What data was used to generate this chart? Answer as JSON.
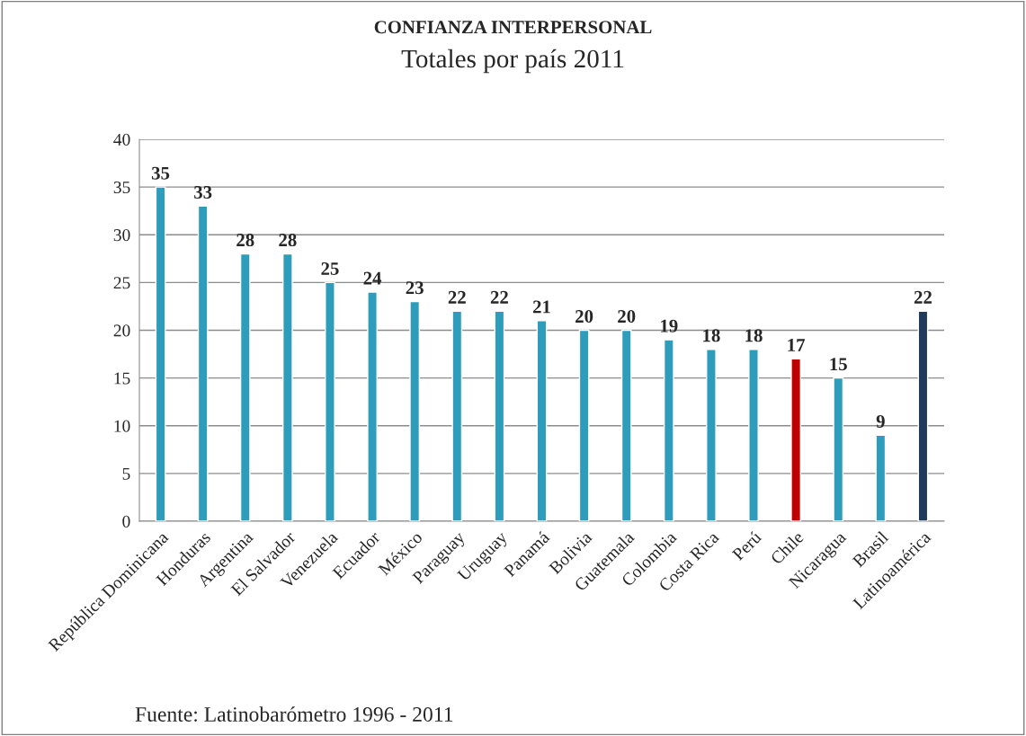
{
  "chart_data": {
    "type": "bar",
    "title": "CONFIANZA INTERPERSONAL",
    "subtitle": "Totales por país 2011",
    "categories": [
      "República Dominicana",
      "Honduras",
      "Argentina",
      "El Salvador",
      "Venezuela",
      "Ecuador",
      "México",
      "Paraguay",
      "Uruguay",
      "Panamá",
      "Bolivia",
      "Guatemala",
      "Colombia",
      "Costa Rica",
      "Perú",
      "Chile",
      "Nicaragua",
      "Brasil",
      "Latinoamérica"
    ],
    "values": [
      35,
      33,
      28,
      28,
      25,
      24,
      23,
      22,
      22,
      21,
      20,
      20,
      19,
      18,
      18,
      17,
      15,
      9,
      22
    ],
    "colors": [
      "#2e9dbb",
      "#2e9dbb",
      "#2e9dbb",
      "#2e9dbb",
      "#2e9dbb",
      "#2e9dbb",
      "#2e9dbb",
      "#2e9dbb",
      "#2e9dbb",
      "#2e9dbb",
      "#2e9dbb",
      "#2e9dbb",
      "#2e9dbb",
      "#2e9dbb",
      "#2e9dbb",
      "#c00000",
      "#2e9dbb",
      "#2e9dbb",
      "#1f3a5a"
    ],
    "ylim": [
      0,
      40
    ],
    "yticks": [
      0,
      5,
      10,
      15,
      20,
      25,
      30,
      35,
      40
    ],
    "grid": "y",
    "data_labels": true,
    "legend": false,
    "annotations": [
      "Fuente: Latinobarómetro 1996 - 2011"
    ]
  }
}
